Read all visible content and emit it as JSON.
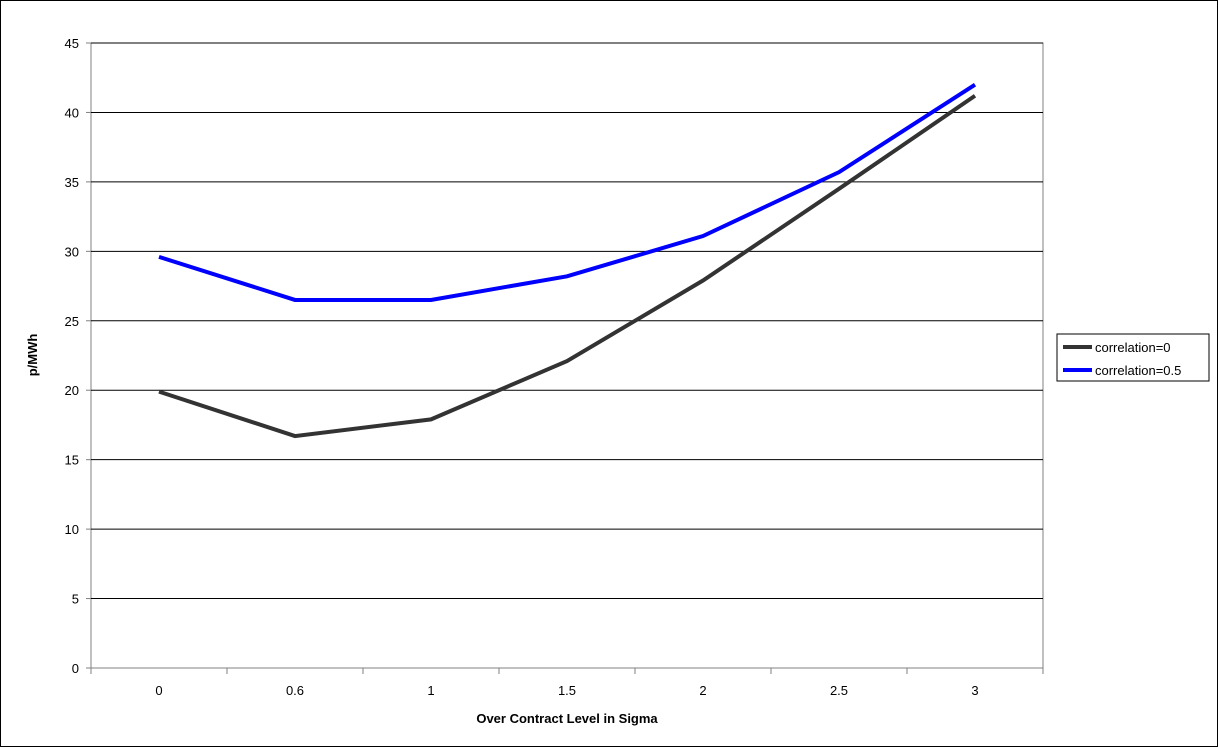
{
  "chart_data": {
    "type": "line",
    "title": "",
    "xlabel": "Over Contract Level in Sigma",
    "ylabel": "p/MWh",
    "categories": [
      "0",
      "0.6",
      "1",
      "1.5",
      "2",
      "2.5",
      "3"
    ],
    "ylim": [
      0,
      45
    ],
    "yticks": [
      "0",
      "5",
      "10",
      "15",
      "20",
      "25",
      "30",
      "35",
      "40",
      "45"
    ],
    "grid": "horizontal",
    "legend_position": "right",
    "series": [
      {
        "name": "correlation=0",
        "color": "#333333",
        "values": [
          19.9,
          16.7,
          17.9,
          22.1,
          27.9,
          34.5,
          41.2
        ]
      },
      {
        "name": "correlation=0.5",
        "color": "#0000ff",
        "values": [
          29.6,
          26.5,
          26.5,
          28.2,
          31.1,
          35.7,
          42.0
        ]
      }
    ]
  }
}
